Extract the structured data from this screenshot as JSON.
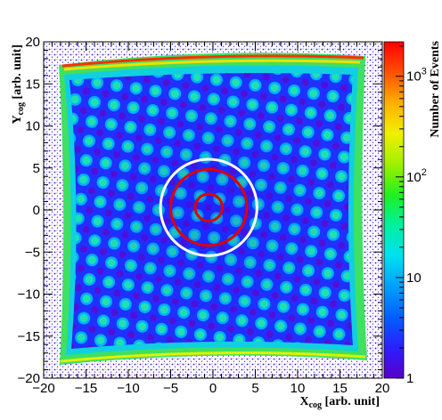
{
  "chart_data": {
    "type": "heatmap",
    "xlabel": {
      "main": "X",
      "sub": "cog",
      "unit": " [arb. unit]"
    },
    "ylabel": {
      "main": "Y",
      "sub": "cog",
      "unit": " [arb. unit]"
    },
    "xlim": [
      -20,
      20
    ],
    "ylim": [
      -20,
      20
    ],
    "x_ticks": [
      -20,
      -15,
      -10,
      -5,
      0,
      5,
      10,
      15,
      20
    ],
    "y_ticks": [
      -20,
      -15,
      -10,
      -5,
      0,
      5,
      10,
      15,
      20
    ],
    "x_tick_labels": [
      "−20",
      "−15",
      "−10",
      "−5",
      "0",
      "5",
      "10",
      "15",
      "20"
    ],
    "y_tick_labels": [
      "−20",
      "−15",
      "−10",
      "−5",
      "0",
      "5",
      "10",
      "15",
      "20"
    ],
    "colorbar": {
      "label": "Number of Events",
      "scale": "log",
      "range": [
        1,
        2200
      ],
      "ticks": [
        {
          "value": 1,
          "label": "1"
        },
        {
          "value": 10,
          "label": "10"
        },
        {
          "value": 100,
          "label": "10",
          "exp": "2"
        },
        {
          "value": 1000,
          "label": "10",
          "exp": "3"
        }
      ],
      "palette": [
        "#5a00c8",
        "#2a20ff",
        "#0060ff",
        "#00a0ff",
        "#00e0f0",
        "#00f0a0",
        "#20f020",
        "#a0f000",
        "#f0f000",
        "#ffb000",
        "#ff5000",
        "#ff0000"
      ]
    },
    "circles": [
      {
        "color": "#ffffff",
        "cx": -0.5,
        "cy": 0.3,
        "r": 5.7
      },
      {
        "color": "#e00000",
        "cx": -0.5,
        "cy": 0.3,
        "r": 4.5
      },
      {
        "color": "#e00000",
        "cx": -0.5,
        "cy": 0.3,
        "r": 1.6
      }
    ],
    "grid": false,
    "legend": "none"
  }
}
